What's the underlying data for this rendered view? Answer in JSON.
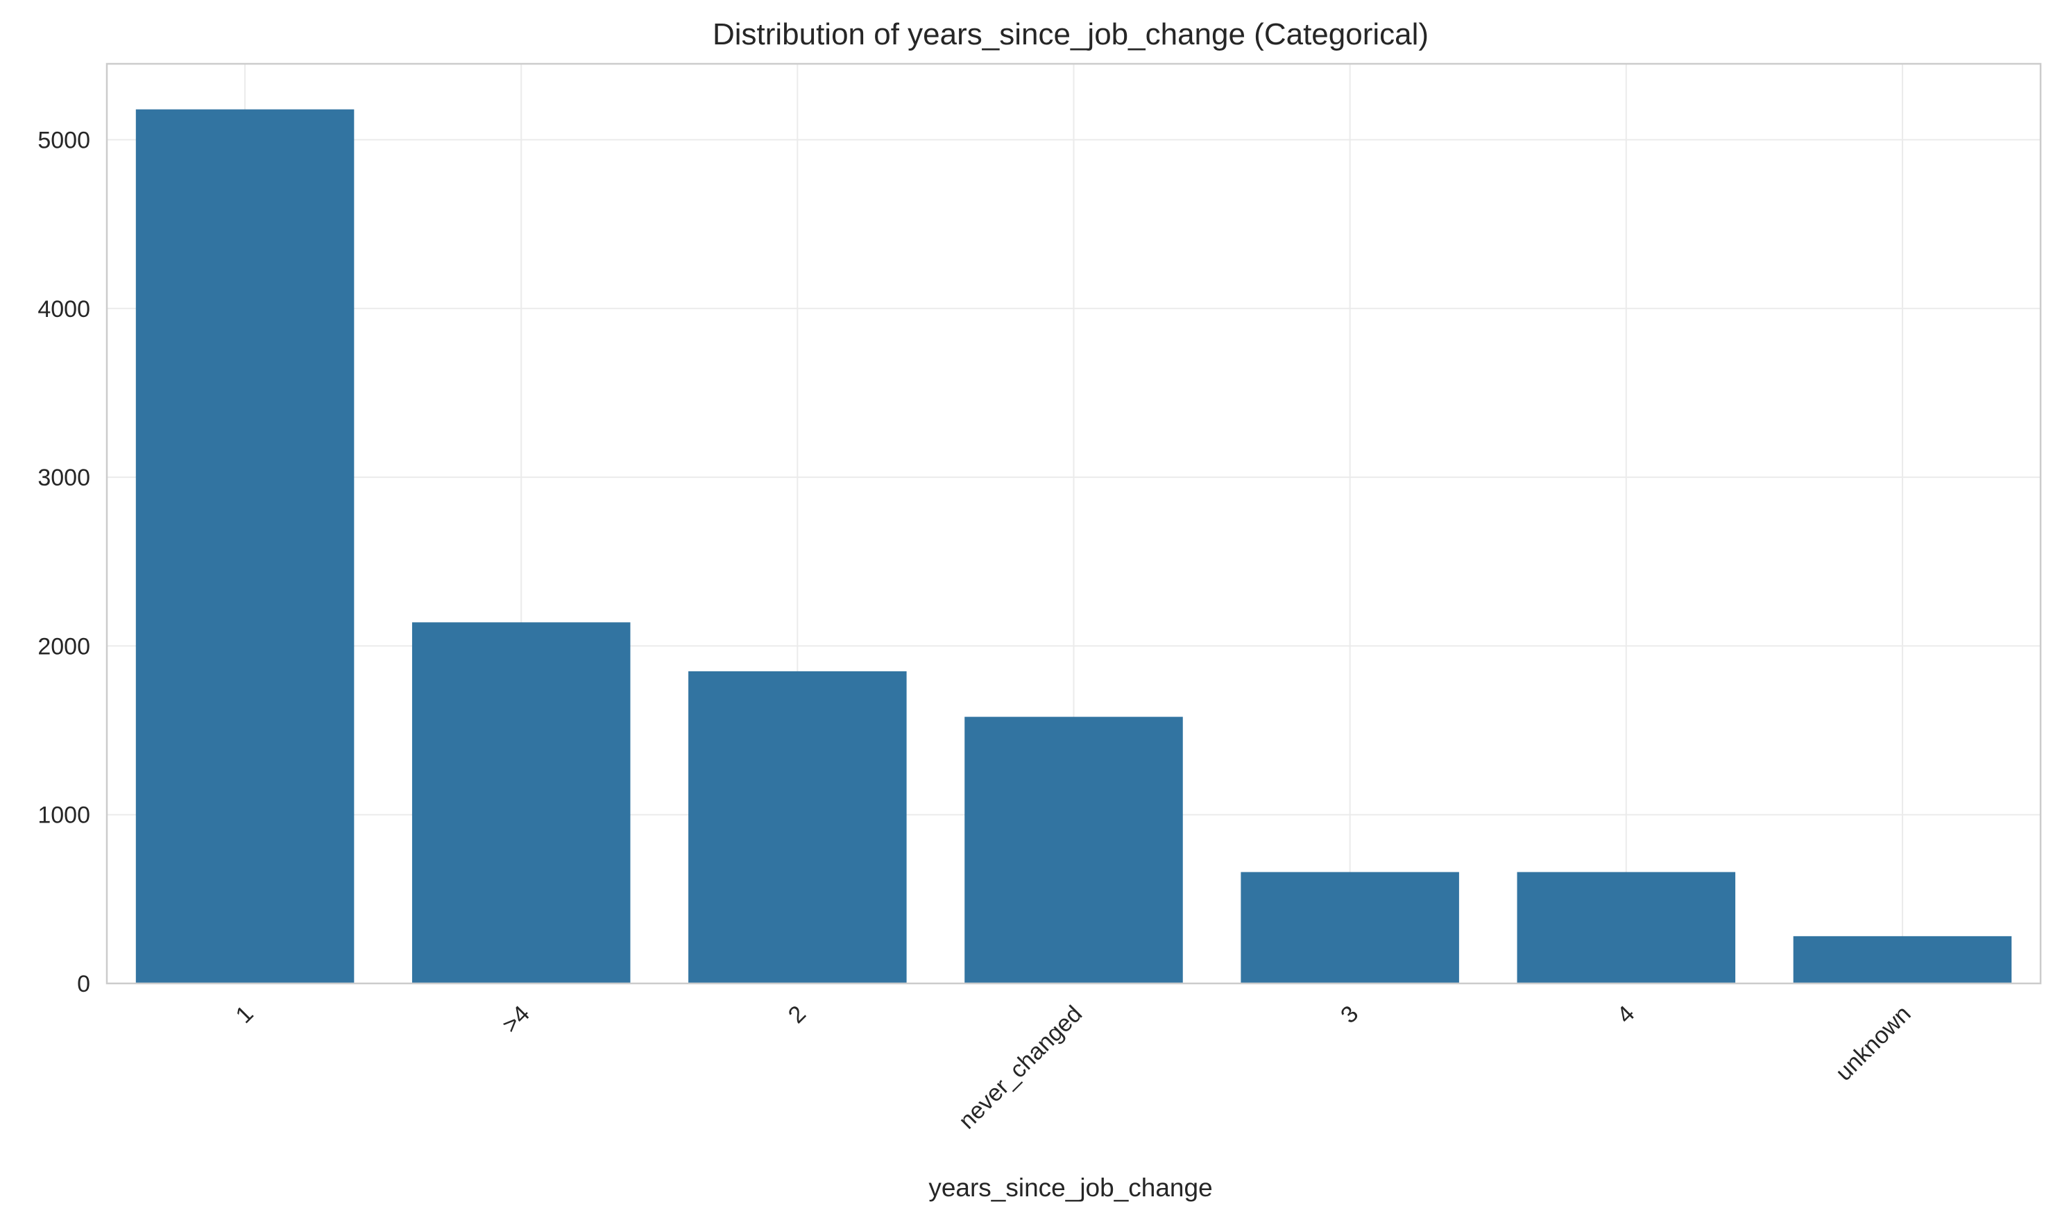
{
  "chart_data": {
    "type": "bar",
    "title": "Distribution of years_since_job_change (Categorical)",
    "xlabel": "years_since_job_change",
    "ylabel": "",
    "categories": [
      "1",
      ">4",
      "2",
      "never_changed",
      "3",
      "4",
      "unknown"
    ],
    "values": [
      5180,
      2140,
      1850,
      1580,
      660,
      660,
      280
    ],
    "ylim": [
      0,
      5450
    ],
    "yticks": [
      0,
      1000,
      2000,
      3000,
      4000,
      5000
    ],
    "grid": true,
    "legend": "none",
    "bar_color": "#3274a1",
    "x_tick_rotation": -45
  }
}
